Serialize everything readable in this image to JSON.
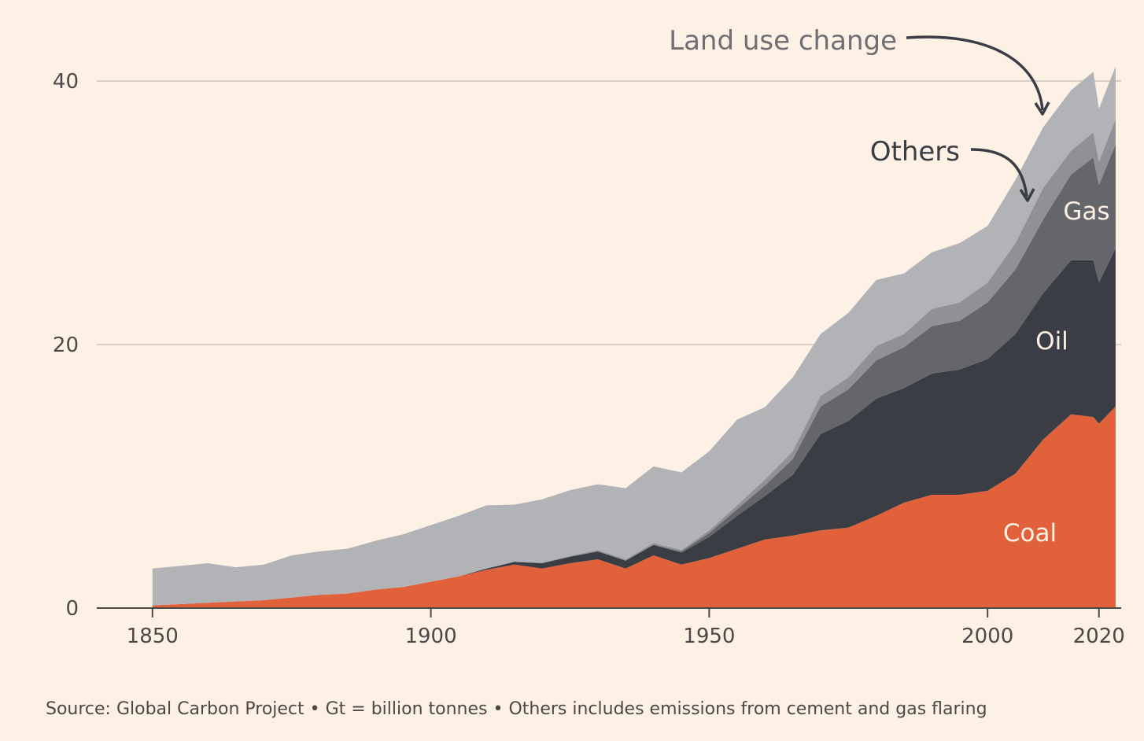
{
  "chart_data": {
    "type": "area",
    "stacked": true,
    "title": "",
    "xlabel": "",
    "ylabel": "",
    "xlim": [
      1840,
      2024
    ],
    "ylim": [
      0,
      40
    ],
    "y_ticks": [
      0,
      20,
      40
    ],
    "x_ticks": [
      1850,
      1900,
      1950,
      2000,
      2020
    ],
    "grid": "horizontal",
    "x": [
      1850,
      1855,
      1860,
      1865,
      1870,
      1875,
      1880,
      1885,
      1890,
      1895,
      1900,
      1905,
      1910,
      1915,
      1920,
      1925,
      1930,
      1935,
      1940,
      1945,
      1950,
      1955,
      1960,
      1965,
      1970,
      1975,
      1980,
      1985,
      1990,
      1995,
      2000,
      2005,
      2010,
      2015,
      2019,
      2020,
      2023
    ],
    "series": [
      {
        "name": "Coal",
        "color": "#e0613a",
        "values": [
          0.2,
          0.3,
          0.4,
          0.5,
          0.6,
          0.8,
          1.0,
          1.1,
          1.4,
          1.6,
          2.0,
          2.4,
          2.9,
          3.3,
          3.0,
          3.4,
          3.7,
          3.0,
          4.0,
          3.3,
          3.8,
          4.5,
          5.2,
          5.5,
          5.9,
          6.1,
          7.0,
          8.0,
          8.6,
          8.6,
          8.9,
          10.2,
          12.8,
          14.7,
          14.5,
          14.0,
          15.3
        ]
      },
      {
        "name": "Oil",
        "color": "#3b3d45",
        "values": [
          0,
          0,
          0,
          0,
          0,
          0,
          0,
          0,
          0,
          0,
          0,
          0,
          0.1,
          0.2,
          0.4,
          0.5,
          0.6,
          0.6,
          0.8,
          0.9,
          1.6,
          2.5,
          3.3,
          4.6,
          7.3,
          8.1,
          8.9,
          8.7,
          9.2,
          9.5,
          10.0,
          10.6,
          11.1,
          11.7,
          11.9,
          10.7,
          12.0
        ]
      },
      {
        "name": "Gas",
        "color": "#64666c",
        "values": [
          0,
          0,
          0,
          0,
          0,
          0,
          0,
          0,
          0,
          0,
          0,
          0,
          0,
          0,
          0,
          0,
          0,
          0,
          0,
          0.1,
          0.3,
          0.5,
          0.8,
          1.2,
          2.1,
          2.4,
          2.9,
          3.1,
          3.6,
          3.7,
          4.3,
          4.9,
          5.6,
          6.5,
          7.8,
          7.4,
          7.9
        ]
      },
      {
        "name": "Others",
        "color": "#8f9196",
        "values": [
          0,
          0,
          0,
          0,
          0,
          0,
          0,
          0,
          0,
          0,
          0,
          0,
          0,
          0.05,
          0.05,
          0.05,
          0.1,
          0.1,
          0.15,
          0.1,
          0.2,
          0.3,
          0.45,
          0.6,
          0.8,
          0.9,
          1.1,
          1.0,
          1.3,
          1.4,
          1.5,
          2.0,
          2.4,
          1.8,
          1.9,
          1.8,
          1.9
        ]
      },
      {
        "name": "Land use change",
        "color": "#b2b3b7",
        "values": [
          2.8,
          2.9,
          3.0,
          2.6,
          2.7,
          3.2,
          3.3,
          3.4,
          3.7,
          4.0,
          4.3,
          4.6,
          4.8,
          4.3,
          4.8,
          5.0,
          5.0,
          5.4,
          5.8,
          5.9,
          6.0,
          6.5,
          5.5,
          5.6,
          4.7,
          4.9,
          5.0,
          4.6,
          4.3,
          4.5,
          4.3,
          4.8,
          4.6,
          4.6,
          4.6,
          4.0,
          4.0
        ]
      }
    ]
  },
  "labels": {
    "coal": "Coal",
    "oil": "Oil",
    "gas": "Gas",
    "others": "Others",
    "land_use_change": "Land use change"
  },
  "source": "Source: Global Carbon Project • Gt = billion tonnes • Others includes emissions from cement and gas flaring",
  "colors": {
    "background": "#fdf1e6",
    "gridline": "#cfc6be",
    "axis": "#4d4845",
    "others_callout": "#3b3d45",
    "land_use_callout": "#6e6e73"
  }
}
